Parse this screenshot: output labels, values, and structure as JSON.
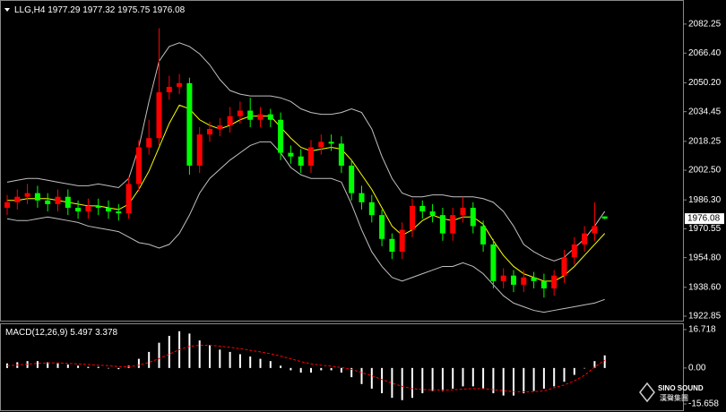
{
  "chart_data": [
    {
      "type": "candlestick",
      "title": "LLG,H4",
      "up_color": "#ff0000",
      "down_color": "#00ff00",
      "open": [
        1982,
        1985,
        1988,
        1990,
        1986,
        1984,
        1988,
        1982,
        1980,
        1983,
        1982,
        1980,
        1979,
        1995,
        2015,
        2020,
        2045,
        2048,
        2050,
        2005,
        2022,
        2025,
        2027,
        2032,
        2035,
        2030,
        2033,
        2030,
        2012,
        2010,
        2005,
        2015,
        2018,
        2017,
        2005,
        1990,
        1985,
        1978,
        1965,
        1958,
        1970,
        1983,
        1980,
        1978,
        1968,
        1978,
        1982,
        1972,
        1962,
        1942,
        1945,
        1940,
        1944,
        1942,
        1938,
        1945,
        1955,
        1962,
        1968,
        1977.29
      ],
      "high": [
        1989,
        1992,
        1995,
        1994,
        1990,
        1992,
        1992,
        1986,
        1987,
        1987,
        1986,
        1984,
        1999,
        2019,
        2030,
        2080,
        2054,
        2055,
        2053,
        2026,
        2029,
        2031,
        2037,
        2040,
        2042,
        2037,
        2036,
        2034,
        2016,
        2014,
        2019,
        2022,
        2022,
        2021,
        2008,
        1994,
        1989,
        1981,
        1968,
        1974,
        1987,
        1986,
        1984,
        1982,
        1982,
        1988,
        1985,
        1975,
        1965,
        1949,
        1948,
        1948,
        1947,
        1946,
        1948,
        1959,
        1966,
        1972,
        1985,
        1977.32
      ],
      "low": [
        1978,
        1981,
        1984,
        1982,
        1980,
        1980,
        1978,
        1976,
        1976,
        1978,
        1976,
        1975,
        1976,
        1991,
        2011,
        2016,
        2041,
        2044,
        2000,
        2001,
        2018,
        2021,
        2023,
        2028,
        2026,
        2026,
        2026,
        2008,
        2006,
        2001,
        2001,
        2011,
        2013,
        2001,
        1986,
        1981,
        1974,
        1961,
        1954,
        1954,
        1966,
        1976,
        1974,
        1964,
        1964,
        1974,
        1968,
        1958,
        1938,
        1938,
        1936,
        1936,
        1938,
        1933,
        1934,
        1941,
        1951,
        1958,
        1964,
        1975.75
      ],
      "close": [
        1985,
        1988,
        1990,
        1986,
        1984,
        1988,
        1982,
        1980,
        1983,
        1982,
        1980,
        1979,
        1995,
        2015,
        2020,
        2045,
        2048,
        2050,
        2005,
        2022,
        2025,
        2027,
        2032,
        2035,
        2030,
        2033,
        2030,
        2012,
        2010,
        2005,
        2015,
        2018,
        2017,
        2005,
        1990,
        1985,
        1978,
        1965,
        1958,
        1970,
        1983,
        1980,
        1978,
        1968,
        1978,
        1982,
        1972,
        1962,
        1942,
        1945,
        1940,
        1944,
        1942,
        1938,
        1945,
        1955,
        1962,
        1968,
        1972,
        1976.08
      ],
      "series": [
        {
          "color": "#ffff00",
          "values": [
            1986,
            1986,
            1987,
            1987,
            1987,
            1986,
            1985,
            1984,
            1983,
            1983,
            1982,
            1981,
            1984,
            1992,
            2002,
            2015,
            2028,
            2038,
            2036,
            2030,
            2027,
            2025,
            2027,
            2030,
            2032,
            2032,
            2032,
            2026,
            2020,
            2015,
            2013,
            2014,
            2015,
            2014,
            2008,
            2000,
            1992,
            1982,
            1972,
            1967,
            1970,
            1975,
            1978,
            1976,
            1975,
            1977,
            1977,
            1973,
            1964,
            1956,
            1950,
            1946,
            1944,
            1942,
            1942,
            1945,
            1950,
            1956,
            1962,
            1968
          ]
        },
        {
          "color": "#c0c0c0",
          "values": [
            1996,
            1997,
            1998,
            1998,
            1997,
            1996,
            1995,
            1994,
            1994,
            1995,
            1994,
            1993,
            1998,
            2015,
            2040,
            2062,
            2070,
            2072,
            2070,
            2066,
            2060,
            2052,
            2046,
            2044,
            2043,
            2043,
            2043,
            2042,
            2040,
            2036,
            2034,
            2033,
            2033,
            2034,
            2036,
            2034,
            2025,
            2010,
            1998,
            1990,
            1988,
            1988,
            1989,
            1989,
            1988,
            1988,
            1988,
            1987,
            1985,
            1980,
            1972,
            1962,
            1958,
            1955,
            1953,
            1955,
            1960,
            1965,
            1972,
            1980
          ]
        },
        {
          "color": "#c0c0c0",
          "values": [
            1976,
            1975,
            1975,
            1976,
            1977,
            1976,
            1975,
            1974,
            1972,
            1971,
            1970,
            1969,
            1966,
            1963,
            1962,
            1960,
            1962,
            1968,
            1978,
            1990,
            1998,
            2003,
            2008,
            2012,
            2016,
            2018,
            2018,
            2012,
            2004,
            2000,
            1998,
            1998,
            1998,
            1996,
            1984,
            1970,
            1958,
            1950,
            1944,
            1942,
            1944,
            1946,
            1948,
            1950,
            1950,
            1952,
            1950,
            1946,
            1940,
            1934,
            1930,
            1928,
            1926,
            1925,
            1926,
            1927,
            1928,
            1929,
            1930,
            1932
          ]
        }
      ],
      "ylim": [
        1920.9,
        2094.4
      ],
      "yticks": [
        {
          "value": 2082.25,
          "label": "2082.25"
        },
        {
          "value": 2066.4,
          "label": "2066.40"
        },
        {
          "value": 2050.2,
          "label": "2050.20"
        },
        {
          "value": 2034.45,
          "label": "2034.45"
        },
        {
          "value": 2018.25,
          "label": "2018.25"
        },
        {
          "value": 2002.5,
          "label": "2002.50"
        },
        {
          "value": 1986.3,
          "label": "1986.30"
        },
        {
          "value": 1970.55,
          "label": "1970.55"
        },
        {
          "value": 1954.8,
          "label": "1954.80"
        },
        {
          "value": 1938.6,
          "label": "1938.60"
        },
        {
          "value": 1922.85,
          "label": "1922.85"
        }
      ]
    },
    {
      "type": "macd",
      "title": "MACD(12,26,9)",
      "histogram_color": "#ffffff",
      "signal_color": "#ff0000",
      "histogram": [
        2,
        2.5,
        3,
        3,
        2.5,
        2,
        1.5,
        1,
        0.5,
        0.5,
        0,
        -0.5,
        1,
        4,
        7,
        11,
        14,
        16,
        15,
        12,
        10,
        8,
        7,
        6,
        5,
        4,
        3,
        1,
        -1,
        -2,
        -2,
        -1,
        -1,
        -2,
        -4,
        -7,
        -9,
        -11,
        -13,
        -14,
        -13,
        -11,
        -10,
        -10,
        -9,
        -8,
        -8,
        -9,
        -11,
        -12,
        -12,
        -11,
        -10,
        -9,
        -8,
        -6,
        -3,
        0,
        3,
        5.497
      ],
      "signal": [
        1,
        1.3,
        1.7,
        2,
        2.2,
        2.2,
        2,
        1.8,
        1.5,
        1.2,
        1,
        0.6,
        0.5,
        1.2,
        2.4,
        4.1,
        6,
        8,
        9.4,
        9.9,
        9.9,
        9.5,
        9,
        8.4,
        7.7,
        7,
        6.2,
        5.2,
        4,
        2.8,
        1.8,
        1.2,
        0.8,
        0.2,
        -0.6,
        -2,
        -3.4,
        -5,
        -6.6,
        -8,
        -9,
        -9.4,
        -9.5,
        -9.6,
        -9.5,
        -9.2,
        -9,
        -9,
        -9.4,
        -9.9,
        -10.3,
        -10.4,
        -10.3,
        -10,
        -8.6,
        -7.4,
        -5.6,
        -3.2,
        0.4,
        3.378
      ],
      "ylim": [
        -18,
        18.67
      ],
      "yticks": [
        16.718,
        {
          "value": 0,
          "label": "0.00"
        },
        -15.658
      ]
    }
  ],
  "watermark": [
    "SINO SOUND",
    "漢聲集團"
  ]
}
